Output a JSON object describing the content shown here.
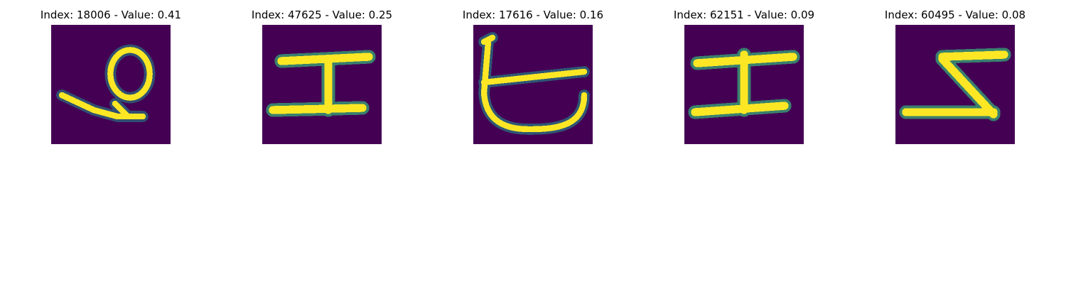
{
  "colors": {
    "background": "#440154",
    "stroke": "#fde725",
    "edge": "#35b779",
    "mid": "#21918c"
  },
  "panels": [
    {
      "title": "Index: 18006 - Value: 0.41",
      "glyph": "loop-with-tail"
    },
    {
      "title": "Index: 47625 - Value: 0.25",
      "glyph": "i-beam"
    },
    {
      "title": "Index: 17616 - Value: 0.16",
      "glyph": "bowl-with-bar"
    },
    {
      "title": "Index: 62151 - Value: 0.09",
      "glyph": "i-beam-wide"
    },
    {
      "title": "Index: 60495 - Value: 0.08",
      "glyph": "z-shape"
    }
  ]
}
